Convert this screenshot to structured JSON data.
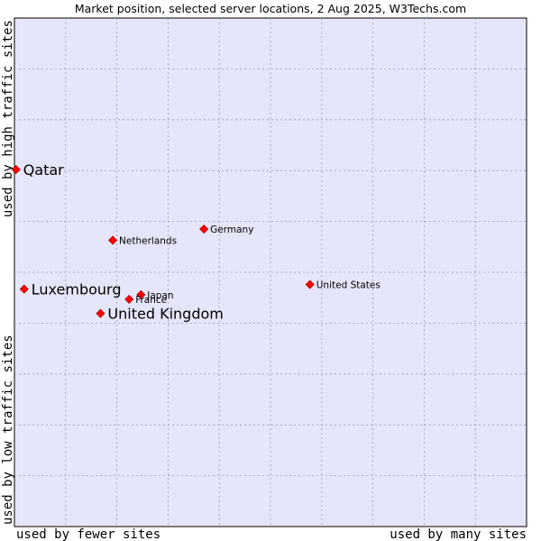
{
  "chart_data": {
    "type": "scatter",
    "title": "Market position, selected server locations, 2 Aug 2025, W3Techs.com",
    "xlabel_left": "used by fewer sites",
    "xlabel_right": "used by many sites",
    "ylabel_bottom": "used by low traffic sites",
    "ylabel_top": "used by high traffic sites",
    "xlim": [
      0,
      100
    ],
    "ylim": [
      0,
      100
    ],
    "grid": true,
    "point_color": "#ff0000",
    "point_edge_color": "#b00000",
    "plot_background": "#e6e6fa",
    "grid_color": "#9a9ab8",
    "points": [
      {
        "label": "Qatar",
        "x": 0.3,
        "y": 70.2,
        "size": "large"
      },
      {
        "label": "Germany",
        "x": 37.0,
        "y": 58.5,
        "size": "small"
      },
      {
        "label": "Netherlands",
        "x": 19.2,
        "y": 56.3,
        "size": "small"
      },
      {
        "label": "Luxembourg",
        "x": 1.9,
        "y": 46.7,
        "size": "large"
      },
      {
        "label": "United States",
        "x": 57.7,
        "y": 47.6,
        "size": "small"
      },
      {
        "label": "Japan",
        "x": 24.7,
        "y": 45.6,
        "size": "small"
      },
      {
        "label": "France",
        "x": 22.4,
        "y": 44.7,
        "size": "small"
      },
      {
        "label": "United Kingdom",
        "x": 16.8,
        "y": 41.9,
        "size": "large"
      }
    ]
  }
}
